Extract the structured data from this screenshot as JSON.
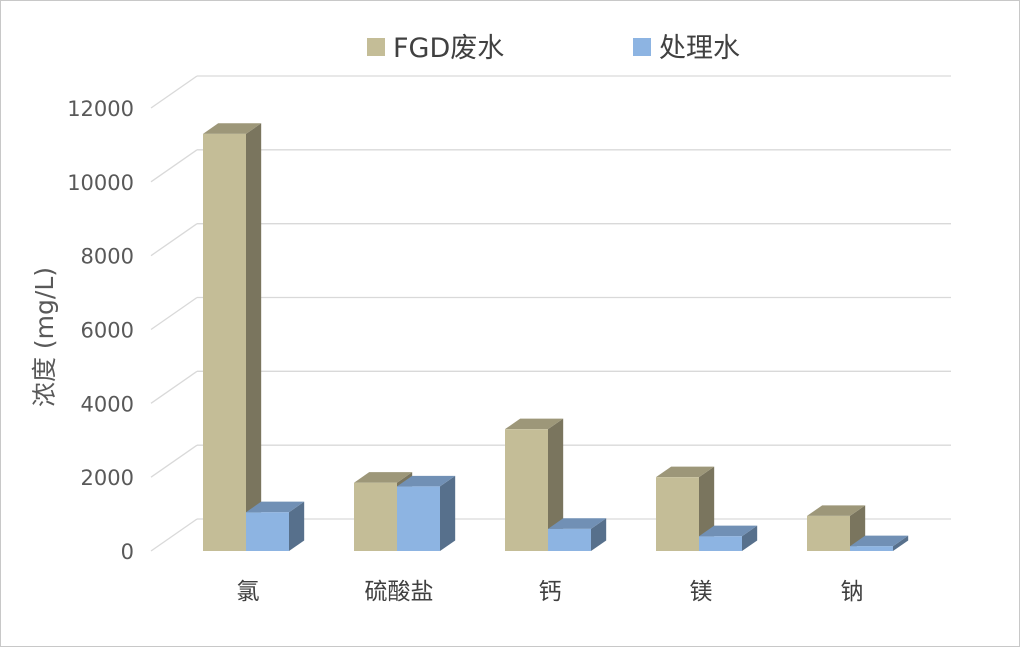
{
  "chart_data": {
    "type": "bar",
    "style": "3d-clustered-column",
    "title": "",
    "xlabel": "",
    "ylabel": "浓度 (mg/L)",
    "ylim": [
      0,
      12000
    ],
    "yticks": [
      0,
      2000,
      4000,
      6000,
      8000,
      10000,
      12000
    ],
    "ytick_labels": [
      "0",
      "2000",
      "4000",
      "6000",
      "8000",
      "10000",
      "12000"
    ],
    "categories": [
      "氯",
      "硫酸盐",
      "钙",
      "镁",
      "钠"
    ],
    "series": [
      {
        "name": "FGD废水",
        "color": "#c4bd97",
        "values": [
          11300,
          1850,
          3300,
          2000,
          950
        ]
      },
      {
        "name": "处理水",
        "color": "#8db4e2",
        "values": [
          1050,
          1750,
          600,
          400,
          130
        ]
      }
    ],
    "legend_position": "top",
    "grid": true
  }
}
